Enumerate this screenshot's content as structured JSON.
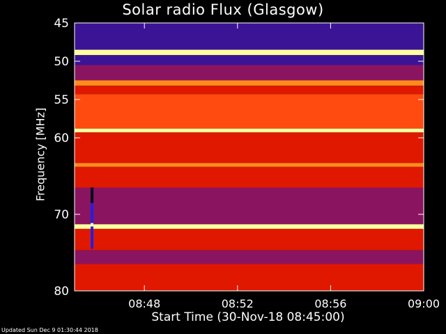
{
  "chart_data": {
    "type": "heatmap",
    "title": "Solar radio Flux (Glasgow)",
    "xlabel": "Start Time (30-Nov-18 08:45:00)",
    "ylabel": "Frequency [MHz]",
    "x_range": [
      "08:45",
      "09:00"
    ],
    "x_ticks": [
      "08:48",
      "08:52",
      "08:56",
      "09:00"
    ],
    "y_range": [
      45,
      80
    ],
    "y_inverted": true,
    "y_ticks": [
      45,
      50,
      55,
      60,
      70,
      80
    ],
    "bands": [
      {
        "from": 45.0,
        "to": 48.5,
        "level": "low"
      },
      {
        "from": 48.5,
        "to": 49.2,
        "level": "very-high"
      },
      {
        "from": 49.2,
        "to": 50.5,
        "level": "low"
      },
      {
        "from": 50.5,
        "to": 52.5,
        "level": "medium-low"
      },
      {
        "from": 52.5,
        "to": 53.2,
        "level": "high"
      },
      {
        "from": 53.2,
        "to": 54.3,
        "level": "medium"
      },
      {
        "from": 54.3,
        "to": 58.8,
        "level": "medium-high"
      },
      {
        "from": 58.8,
        "to": 59.3,
        "level": "very-high"
      },
      {
        "from": 59.3,
        "to": 63.3,
        "level": "medium"
      },
      {
        "from": 63.3,
        "to": 63.8,
        "level": "high"
      },
      {
        "from": 63.8,
        "to": 66.5,
        "level": "medium"
      },
      {
        "from": 66.5,
        "to": 71.3,
        "level": "medium-low"
      },
      {
        "from": 71.3,
        "to": 71.9,
        "level": "very-high"
      },
      {
        "from": 71.9,
        "to": 74.7,
        "level": "medium"
      },
      {
        "from": 74.7,
        "to": 76.5,
        "level": "medium-low"
      },
      {
        "from": 76.5,
        "to": 80.0,
        "level": "medium"
      }
    ],
    "burst": {
      "time": "08:45:45",
      "from_mhz": 66.5,
      "to_mhz": 74.5
    },
    "colors": {
      "low": "#3b1496",
      "medium-low": "#8a1460",
      "medium": "#e01800",
      "medium-high": "#ff4a10",
      "high": "#ff8c1a",
      "very-high": "#ffffa0"
    },
    "grid": false,
    "legend": "none"
  },
  "footer": "Updated Sun Dec  9 01:30:44 2018"
}
